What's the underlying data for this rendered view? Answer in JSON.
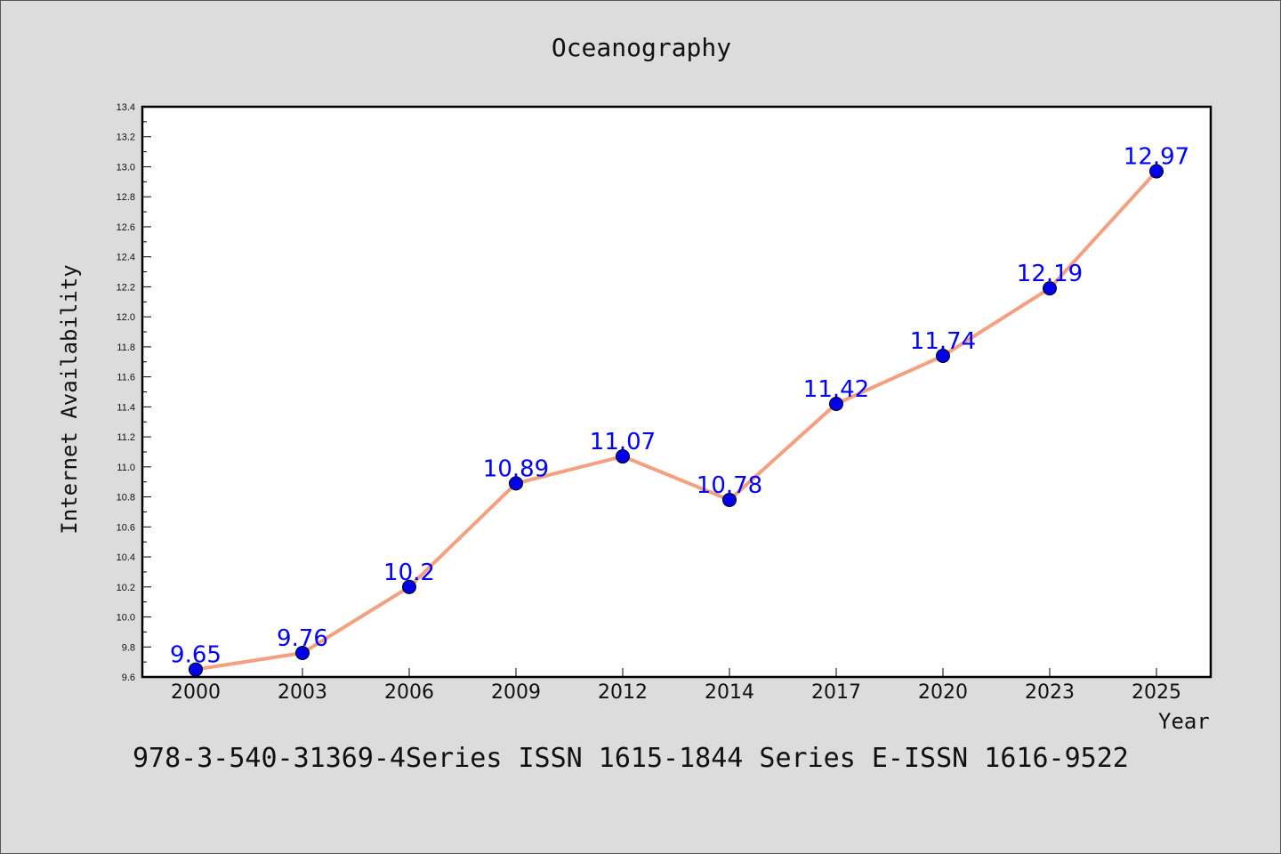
{
  "chart_data": {
    "type": "line",
    "title": "Oceanography",
    "xlabel": "Year",
    "ylabel": "Internet Availability",
    "categories": [
      "2000",
      "2003",
      "2006",
      "2009",
      "2012",
      "2014",
      "2017",
      "2020",
      "2023",
      "2025"
    ],
    "series": [
      {
        "values": [
          9.65,
          9.76,
          10.2,
          10.89,
          11.07,
          10.78,
          11.42,
          11.74,
          12.19,
          12.97
        ]
      }
    ],
    "data_labels": [
      "9.65",
      "9.76",
      "10.2",
      "10.89",
      "11.07",
      "10.78",
      "11.42",
      "11.74",
      "12.19",
      "12.97"
    ],
    "ylim": [
      9.6,
      13.4
    ],
    "yticks": [
      "9.6",
      "9.8",
      "10.0",
      "10.2",
      "10.4",
      "10.6",
      "10.8",
      "11.0",
      "11.2",
      "11.4",
      "11.6",
      "11.8",
      "12.0",
      "12.2",
      "12.4",
      "12.6",
      "12.8",
      "13.0",
      "13.2",
      "13.4"
    ],
    "grid": false,
    "line_color": "#f4a07e",
    "marker_color": "#0000ee",
    "label_color": "#0000ff"
  },
  "footer_text": "978-3-540-31369-4Series ISSN 1615-1844 Series E-ISSN 1616-9522"
}
